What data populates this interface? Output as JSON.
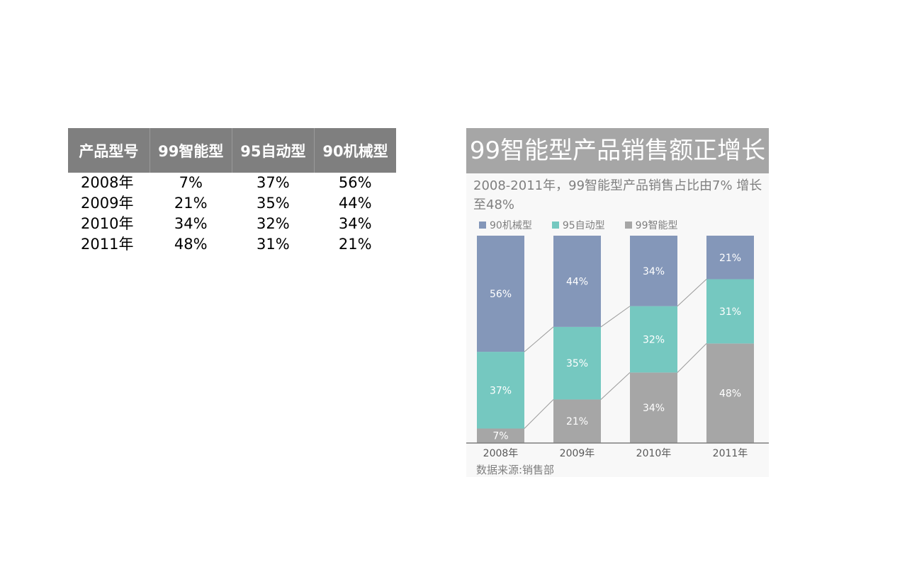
{
  "table": {
    "headers": [
      "产品型号",
      "99智能型",
      "95自动型",
      "90机械型"
    ],
    "rows": [
      [
        "2008年",
        "7%",
        "37%",
        "56%"
      ],
      [
        "2009年",
        "21%",
        "35%",
        "44%"
      ],
      [
        "2010年",
        "34%",
        "32%",
        "34%"
      ],
      [
        "2011年",
        "48%",
        "31%",
        "21%"
      ]
    ]
  },
  "chart": {
    "title": "99智能型产品销售额正增长",
    "subtitle": "2008-2011年，99智能型产品销售占比由7% 增长至48%",
    "source": "数据来源:销售部"
  },
  "colors": {
    "header_bg": "#7f7f7f",
    "title_bg": "#a6a6a6",
    "series_90": "#8497b9",
    "series_95": "#75c8c0",
    "series_99": "#a6a6a6"
  },
  "chart_data": {
    "type": "bar",
    "stacked": true,
    "categories": [
      "2008年",
      "2009年",
      "2010年",
      "2011年"
    ],
    "series": [
      {
        "name": "99智能型",
        "values": [
          7,
          21,
          34,
          48
        ],
        "color": "#a6a6a6"
      },
      {
        "name": "95自动型",
        "values": [
          37,
          35,
          32,
          31
        ],
        "color": "#75c8c0"
      },
      {
        "name": "90机械型",
        "values": [
          56,
          44,
          34,
          21
        ],
        "color": "#8497b9"
      }
    ],
    "legend_order": [
      "90机械型",
      "95自动型",
      "99智能型"
    ],
    "value_suffix": "%",
    "ylim": [
      0,
      100
    ],
    "legend": "top-left",
    "grid": false,
    "series_connectors": true
  }
}
